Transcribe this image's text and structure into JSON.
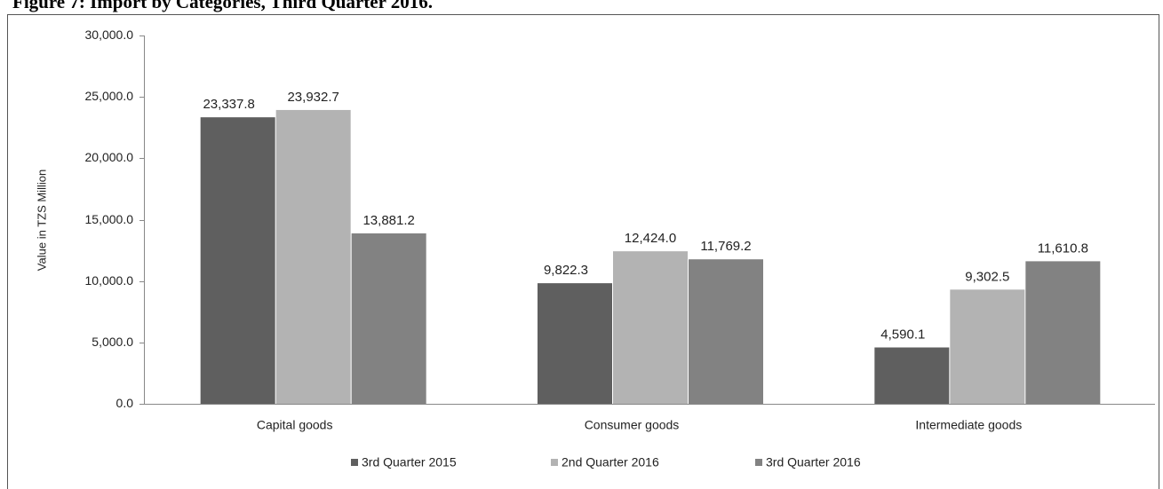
{
  "chart_data": {
    "type": "bar",
    "title": "Figure 7: Import by Categories, Third Quarter 2016.",
    "y_label": "Value in TZS Million",
    "categories": [
      "Capital goods",
      "Consumer  goods",
      "Intermediate goods"
    ],
    "series": [
      {
        "name": "3rd Quarter 2015",
        "color": "#5f5f5f",
        "values": [
          23337.8,
          9822.3,
          4590.1
        ],
        "value_labels": [
          "23,337.8",
          "9,822.3",
          "4,590.1"
        ]
      },
      {
        "name": "2nd Quarter 2016",
        "color": "#b3b3b3",
        "values": [
          23932.7,
          12424.0,
          9302.5
        ],
        "value_labels": [
          "23,932.7",
          "12,424.0",
          "9,302.5"
        ]
      },
      {
        "name": "3rd Quarter 2016",
        "color": "#828282",
        "values": [
          13881.2,
          11769.2,
          11610.8
        ],
        "value_labels": [
          "13,881.2",
          "11,769.2",
          "11,610.8"
        ]
      }
    ],
    "ylim": [
      0,
      30000
    ],
    "yticks": [
      {
        "value": 0,
        "label": "0.0"
      },
      {
        "value": 5000,
        "label": "5,000.0"
      },
      {
        "value": 10000,
        "label": "10,000.0"
      },
      {
        "value": 15000,
        "label": "15,000.0"
      },
      {
        "value": 20000,
        "label": "20,000.0"
      },
      {
        "value": 25000,
        "label": "25,000.0"
      },
      {
        "value": 30000,
        "label": "30,000.0"
      }
    ],
    "legend": "bottom"
  }
}
